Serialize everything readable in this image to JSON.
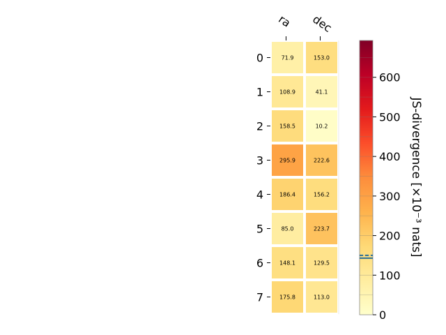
{
  "chart_data": {
    "type": "heatmap",
    "columns": [
      "ra",
      "dec"
    ],
    "rows": [
      "0",
      "1",
      "2",
      "3",
      "4",
      "5",
      "6",
      "7"
    ],
    "values": [
      [
        71.9,
        153.0
      ],
      [
        108.9,
        41.1
      ],
      [
        158.5,
        10.2
      ],
      [
        295.9,
        222.6
      ],
      [
        186.4,
        156.2
      ],
      [
        85.0,
        223.7
      ],
      [
        148.1,
        129.5
      ],
      [
        175.8,
        113.0
      ]
    ],
    "colorbar": {
      "label": "JS-divergence [×10⁻³ nats]",
      "ticks": [
        0,
        100,
        200,
        300,
        400,
        500,
        600
      ],
      "range": [
        0,
        693
      ],
      "markers": [
        143,
        150
      ],
      "colormap": "YlOrRd"
    }
  }
}
